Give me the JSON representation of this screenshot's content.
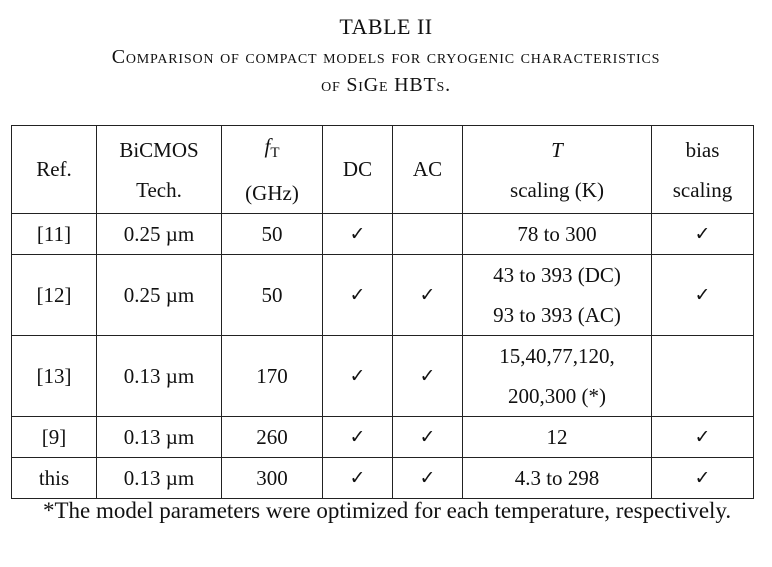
{
  "caption": {
    "label": "TABLE II",
    "line1": "Comparison of compact models for cryogenic characteristics",
    "line2": "of SiGe HBTs."
  },
  "table": {
    "headers": {
      "ref": "Ref.",
      "tech_line1": "BiCMOS",
      "tech_line2": "Tech.",
      "ft_symbol": "f",
      "ft_subscript": "T",
      "ft_unit": "(GHz)",
      "dc": "DC",
      "ac": "AC",
      "t_symbol": "T",
      "t_line2": "scaling (K)",
      "bias_line1": "bias",
      "bias_line2": "scaling"
    },
    "rows": [
      {
        "ref": "[11]",
        "tech": "0.25 µm",
        "ft": "50",
        "dc": "✓",
        "ac": "",
        "t_line1": "78 to 300",
        "t_line2": "",
        "bias": "✓"
      },
      {
        "ref": "[12]",
        "tech": "0.25 µm",
        "ft": "50",
        "dc": "✓",
        "ac": "✓",
        "t_line1": "43 to 393 (DC)",
        "t_line2": "93 to 393 (AC)",
        "bias": "✓"
      },
      {
        "ref": "[13]",
        "tech": "0.13 µm",
        "ft": "170",
        "dc": "✓",
        "ac": "✓",
        "t_line1": "15,40,77,120,",
        "t_line2": "200,300 (*)",
        "bias": ""
      },
      {
        "ref": "[9]",
        "tech": "0.13 µm",
        "ft": "260",
        "dc": "✓",
        "ac": "✓",
        "t_line1": "12",
        "t_line2": "",
        "bias": "✓"
      },
      {
        "ref": "this",
        "tech": "0.13 µm",
        "ft": "300",
        "dc": "✓",
        "ac": "✓",
        "t_line1": "4.3 to 298",
        "t_line2": "",
        "bias": "✓"
      }
    ]
  },
  "footnote": "*The model parameters were optimized for each temperature, respectively."
}
